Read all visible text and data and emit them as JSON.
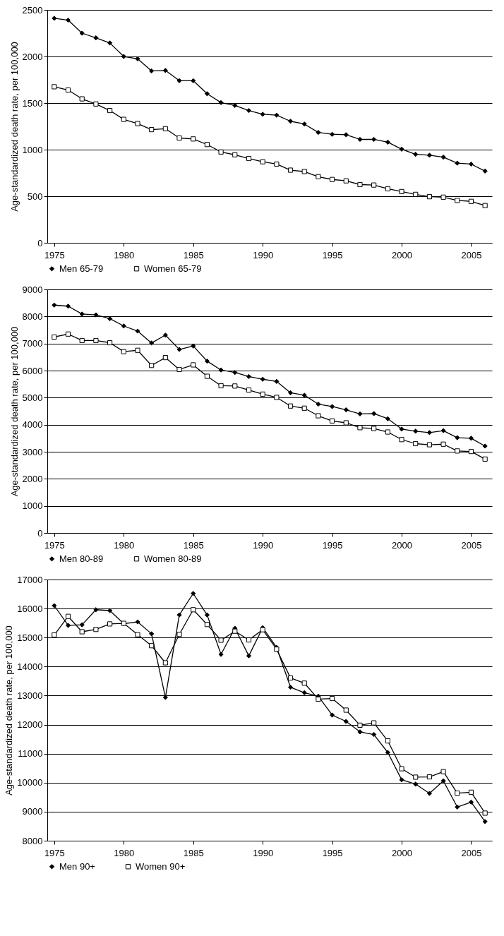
{
  "chart_data": [
    {
      "type": "line",
      "ylabel": "Age-standardized death rate, per 100,000",
      "x": [
        1975,
        1976,
        1977,
        1978,
        1979,
        1980,
        1981,
        1982,
        1983,
        1984,
        1985,
        1986,
        1987,
        1988,
        1989,
        1990,
        1991,
        1992,
        1993,
        1994,
        1995,
        1996,
        1997,
        1998,
        1999,
        2000,
        2001,
        2002,
        2003,
        2004,
        2005,
        2006
      ],
      "xlim": [
        1974.5,
        2006.5
      ],
      "xticks": [
        1975,
        1980,
        1985,
        1990,
        1995,
        2000,
        2005
      ],
      "ylim": [
        0,
        2500
      ],
      "yticks": [
        0,
        500,
        1000,
        1500,
        2000,
        2500
      ],
      "grid": "y",
      "legend": "bottom",
      "series": [
        {
          "name": "Men 65-79",
          "color": "#000000",
          "marker": "diamond",
          "values": [
            2410,
            2390,
            2250,
            2200,
            2145,
            2000,
            1975,
            1845,
            1850,
            1740,
            1740,
            1600,
            1505,
            1475,
            1420,
            1380,
            1370,
            1305,
            1275,
            1185,
            1165,
            1160,
            1110,
            1110,
            1080,
            1005,
            950,
            940,
            920,
            855,
            845,
            770
          ]
        },
        {
          "name": "Women  65-79",
          "color": "#000000",
          "marker": "square",
          "values": [
            1675,
            1640,
            1545,
            1490,
            1420,
            1325,
            1280,
            1215,
            1225,
            1125,
            1115,
            1055,
            975,
            945,
            905,
            870,
            845,
            780,
            765,
            710,
            680,
            665,
            625,
            620,
            580,
            550,
            520,
            495,
            490,
            455,
            445,
            400
          ]
        }
      ]
    },
    {
      "type": "line",
      "ylabel": "Age-standardized death rate, per 100,000",
      "x": [
        1975,
        1976,
        1977,
        1978,
        1979,
        1980,
        1981,
        1982,
        1983,
        1984,
        1985,
        1986,
        1987,
        1988,
        1989,
        1990,
        1991,
        1992,
        1993,
        1994,
        1995,
        1996,
        1997,
        1998,
        1999,
        2000,
        2001,
        2002,
        2003,
        2004,
        2005,
        2006
      ],
      "xlim": [
        1974.5,
        2006.5
      ],
      "xticks": [
        1975,
        1980,
        1985,
        1990,
        1995,
        2000,
        2005
      ],
      "ylim": [
        0,
        9000
      ],
      "yticks": [
        0,
        1000,
        2000,
        3000,
        4000,
        5000,
        6000,
        7000,
        8000,
        9000
      ],
      "grid": "y",
      "legend": "bottom",
      "series": [
        {
          "name": "Men 80-89",
          "color": "#000000",
          "marker": "diamond",
          "values": [
            8420,
            8380,
            8090,
            8060,
            7920,
            7650,
            7460,
            7020,
            7310,
            6780,
            6910,
            6350,
            6020,
            5930,
            5780,
            5680,
            5600,
            5180,
            5090,
            4760,
            4670,
            4550,
            4400,
            4410,
            4220,
            3840,
            3760,
            3710,
            3780,
            3520,
            3500,
            3210
          ]
        },
        {
          "name": "Women  80-89",
          "color": "#000000",
          "marker": "square",
          "values": [
            7240,
            7350,
            7110,
            7110,
            7030,
            6700,
            6750,
            6190,
            6480,
            6040,
            6210,
            5790,
            5440,
            5430,
            5280,
            5130,
            5010,
            4690,
            4610,
            4330,
            4140,
            4070,
            3890,
            3860,
            3730,
            3450,
            3300,
            3260,
            3280,
            3030,
            3010,
            2730
          ]
        }
      ]
    },
    {
      "type": "line",
      "ylabel": "Age-standardized death rate, per 100,000",
      "x": [
        1975,
        1976,
        1977,
        1978,
        1979,
        1980,
        1981,
        1982,
        1983,
        1984,
        1985,
        1986,
        1987,
        1988,
        1989,
        1990,
        1991,
        1992,
        1993,
        1994,
        1995,
        1996,
        1997,
        1998,
        1999,
        2000,
        2001,
        2002,
        2003,
        2004,
        2005,
        2006
      ],
      "xlim": [
        1974.5,
        2006.5
      ],
      "xticks": [
        1975,
        1980,
        1985,
        1990,
        1995,
        2000,
        2005
      ],
      "ylim": [
        8000,
        17000
      ],
      "yticks": [
        8000,
        9000,
        10000,
        11000,
        12000,
        13000,
        14000,
        15000,
        16000,
        17000
      ],
      "grid": "y",
      "legend": "bottom",
      "series": [
        {
          "name": "Men 90+",
          "color": "#000000",
          "marker": "diamond",
          "values": [
            16100,
            15420,
            15440,
            15960,
            15930,
            15480,
            15540,
            15130,
            12940,
            15780,
            16520,
            15780,
            14420,
            15320,
            14370,
            15340,
            14660,
            13290,
            13100,
            12980,
            12330,
            12110,
            11750,
            11660,
            11040,
            10100,
            9950,
            9630,
            10060,
            9160,
            9330,
            8660
          ]
        },
        {
          "name": "Women  90+",
          "color": "#000000",
          "marker": "square",
          "values": [
            15090,
            15730,
            15200,
            15280,
            15470,
            15490,
            15100,
            14720,
            14130,
            15110,
            15960,
            15450,
            14910,
            15220,
            14920,
            15270,
            14600,
            13610,
            13430,
            12880,
            12900,
            12500,
            11980,
            12060,
            11440,
            10480,
            10190,
            10200,
            10380,
            9640,
            9670,
            8950
          ]
        }
      ]
    }
  ]
}
